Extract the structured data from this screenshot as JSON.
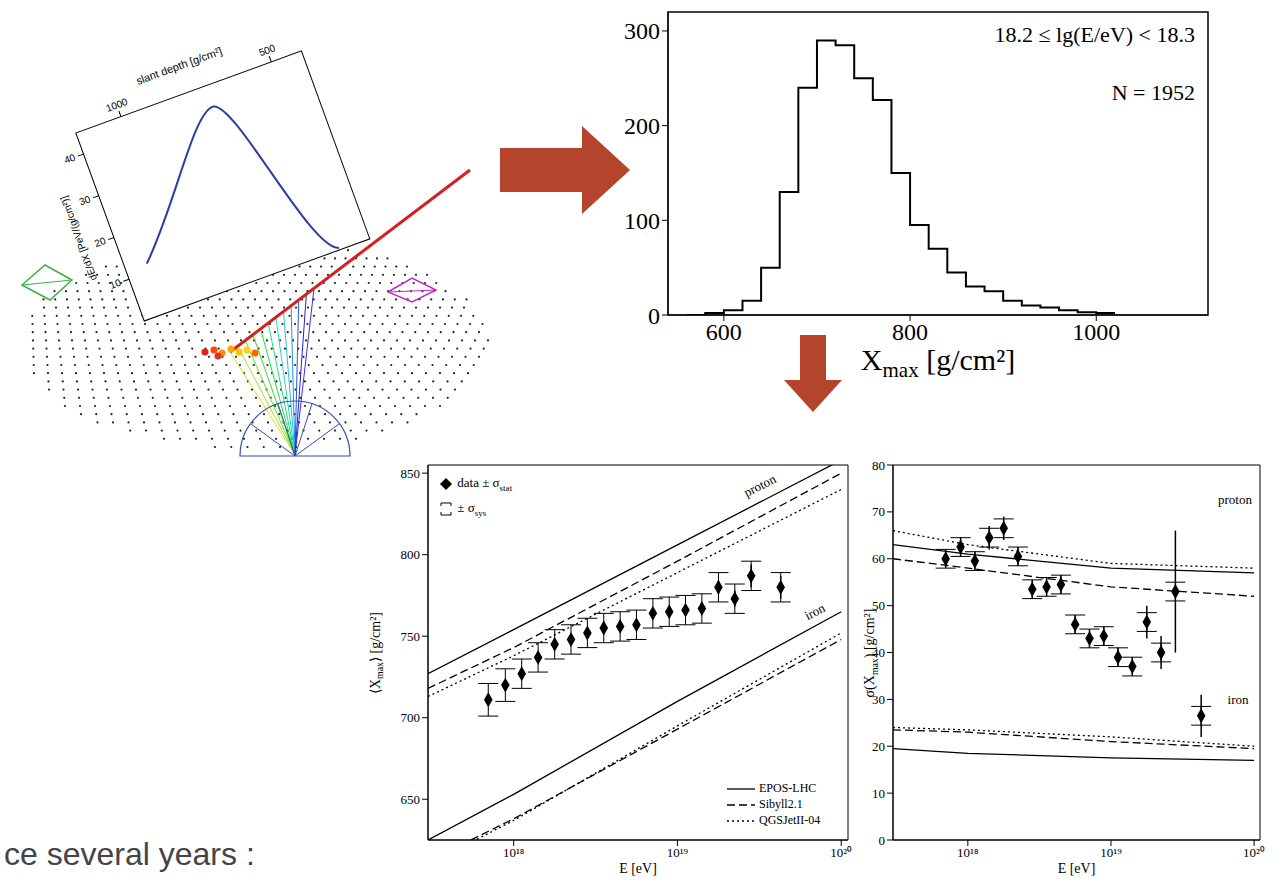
{
  "diagram": {
    "profile": {
      "x_title": "slant depth [g/cm²]",
      "x_ticks": [
        1000,
        500
      ],
      "y_title": "dE/dX [PeV/(g/cm²)]",
      "y_ticks": [
        10,
        20,
        30,
        40
      ]
    }
  },
  "text": "ce several years :",
  "chart_data": [
    {
      "type": "histogram",
      "xlabel": "Xmax [g/cm²]",
      "annotations": [
        "18.2 ≤ lg(E/eV) < 18.3",
        "N = 1952"
      ],
      "bins": [
        560,
        580,
        600,
        620,
        640,
        660,
        680,
        700,
        720,
        740,
        760,
        780,
        800,
        820,
        840,
        860,
        880,
        900,
        920,
        940,
        960,
        980,
        1000,
        1020
      ],
      "counts": [
        0,
        2,
        5,
        15,
        50,
        130,
        240,
        290,
        285,
        250,
        227,
        150,
        95,
        70,
        45,
        30,
        25,
        15,
        10,
        8,
        5,
        3,
        2
      ],
      "color": "#000000",
      "xlim": [
        540,
        1120
      ],
      "xticks": [
        600,
        800,
        1000
      ],
      "ylim": [
        0,
        320
      ],
      "yticks": [
        0,
        100,
        200,
        300
      ]
    },
    {
      "type": "scatter",
      "xlabel": "E [eV]",
      "ylabel": "⟨Xmax⟩ [g/cm²]",
      "log": "x",
      "xlim": [
        3e+17,
        1.1e+20
      ],
      "xticks": [
        {
          "value": 1e+18,
          "label": "10¹⁸"
        },
        {
          "value": 1e+19,
          "label": "10¹⁹"
        },
        {
          "value": 1e+20,
          "label": "10²⁰"
        }
      ],
      "ylim": [
        625,
        855
      ],
      "yticks": [
        650,
        700,
        750,
        800,
        850
      ],
      "annotations": [
        "proton",
        "iron"
      ],
      "x": [
        7e+17,
        8.9e+17,
        1.12e+18,
        1.41e+18,
        1.78e+18,
        2.24e+18,
        2.82e+18,
        3.55e+18,
        4.47e+18,
        5.62e+18,
        7.08e+18,
        8.91e+18,
        1.12e+19,
        1.41e+19,
        1.78e+19,
        2.24e+19,
        2.82e+19,
        4.27e+19
      ],
      "series": [
        {
          "name": "data ± σstat",
          "sys_label": "± σsys",
          "marker": "diamond",
          "color": "#000000",
          "values": [
            711,
            720,
            727,
            737,
            745,
            748,
            752,
            755,
            756,
            757,
            764,
            765,
            766,
            767,
            780,
            773,
            787,
            780
          ],
          "stat_error": [
            2,
            2,
            2,
            2,
            2,
            2,
            2,
            2,
            2,
            2,
            2,
            2,
            2,
            3,
            4,
            5,
            7,
            7
          ],
          "sys_error": [
            10,
            10,
            9,
            9,
            9,
            9,
            9,
            9,
            9,
            9,
            9,
            9,
            9,
            9,
            9,
            9,
            9,
            9
          ]
        }
      ],
      "models": [
        {
          "name": "EPOS-LHC",
          "line_style": "solid",
          "color": "#000000",
          "x": [
            3e+17,
            1e+18,
            1e+19,
            1e+20
          ],
          "proton": [
            727,
            754,
            806,
            858
          ],
          "iron": [
            625,
            653,
            710,
            765
          ]
        },
        {
          "name": "Sibyll2.1",
          "line_style": "dashed",
          "color": "#000000",
          "x": [
            3e+17,
            1e+18,
            1e+19,
            1e+20
          ],
          "proton": [
            718,
            743,
            796,
            850
          ],
          "iron": [
            612,
            638,
            693,
            748
          ]
        },
        {
          "name": "QGSJetII-04",
          "line_style": "dotted",
          "color": "#000000",
          "x": [
            3e+17,
            1e+18,
            1e+19,
            1e+20
          ],
          "proton": [
            713,
            738,
            789,
            840
          ],
          "iron": [
            610,
            637,
            695,
            752
          ]
        }
      ]
    },
    {
      "type": "scatter",
      "xlabel": "E [eV]",
      "ylabel": "σ(Xmax) [g/cm²]",
      "log": "x",
      "xlim": [
        3e+17,
        1.1e+20
      ],
      "xticks": [
        {
          "value": 1e+18,
          "label": "10¹⁸"
        },
        {
          "value": 1e+19,
          "label": "10¹⁹"
        },
        {
          "value": 1e+20,
          "label": "10²⁰"
        }
      ],
      "ylim": [
        0,
        80
      ],
      "yticks": [
        0,
        10,
        20,
        30,
        40,
        50,
        60,
        70,
        80
      ],
      "annotations": [
        "proton",
        "iron"
      ],
      "x": [
        7e+17,
        8.9e+17,
        1.12e+18,
        1.41e+18,
        1.78e+18,
        2.24e+18,
        2.82e+18,
        3.55e+18,
        4.47e+18,
        5.62e+18,
        7.08e+18,
        8.91e+18,
        1.12e+19,
        1.41e+19,
        1.78e+19,
        2.24e+19,
        2.82e+19,
        4.27e+19
      ],
      "series": [
        {
          "marker": "diamond",
          "color": "#000000",
          "values": [
            60,
            62.5,
            59.5,
            64.5,
            66.5,
            60.5,
            53.5,
            54,
            54.5,
            46,
            43,
            43.5,
            39,
            37,
            46.5,
            40,
            53,
            26.5
          ],
          "stat_error": [
            2,
            2,
            2,
            2.5,
            2.5,
            2,
            2,
            2,
            2,
            2,
            2,
            2,
            2,
            2,
            3.5,
            3.5,
            13,
            4.5
          ],
          "sys_error": [
            2,
            2,
            2,
            2,
            2,
            2,
            2,
            2,
            2,
            2,
            2,
            2,
            2,
            2,
            2,
            2,
            2,
            2
          ]
        }
      ],
      "models": [
        {
          "line_style": "solid",
          "color": "#000000",
          "x": [
            3e+17,
            1e+18,
            1e+19,
            1e+20
          ],
          "proton": [
            63,
            61,
            58,
            57
          ],
          "iron": [
            19.5,
            18.5,
            17.5,
            17
          ]
        },
        {
          "line_style": "dashed",
          "color": "#000000",
          "x": [
            3e+17,
            1e+18,
            1e+19,
            1e+20
          ],
          "proton": [
            60,
            58,
            54,
            52
          ],
          "iron": [
            23.5,
            23,
            21,
            19.5
          ]
        },
        {
          "line_style": "dotted",
          "color": "#000000",
          "x": [
            3e+17,
            1e+18,
            1e+19,
            1e+20
          ],
          "proton": [
            66,
            63,
            59,
            58
          ],
          "iron": [
            24,
            23.5,
            22,
            20
          ]
        }
      ]
    }
  ]
}
